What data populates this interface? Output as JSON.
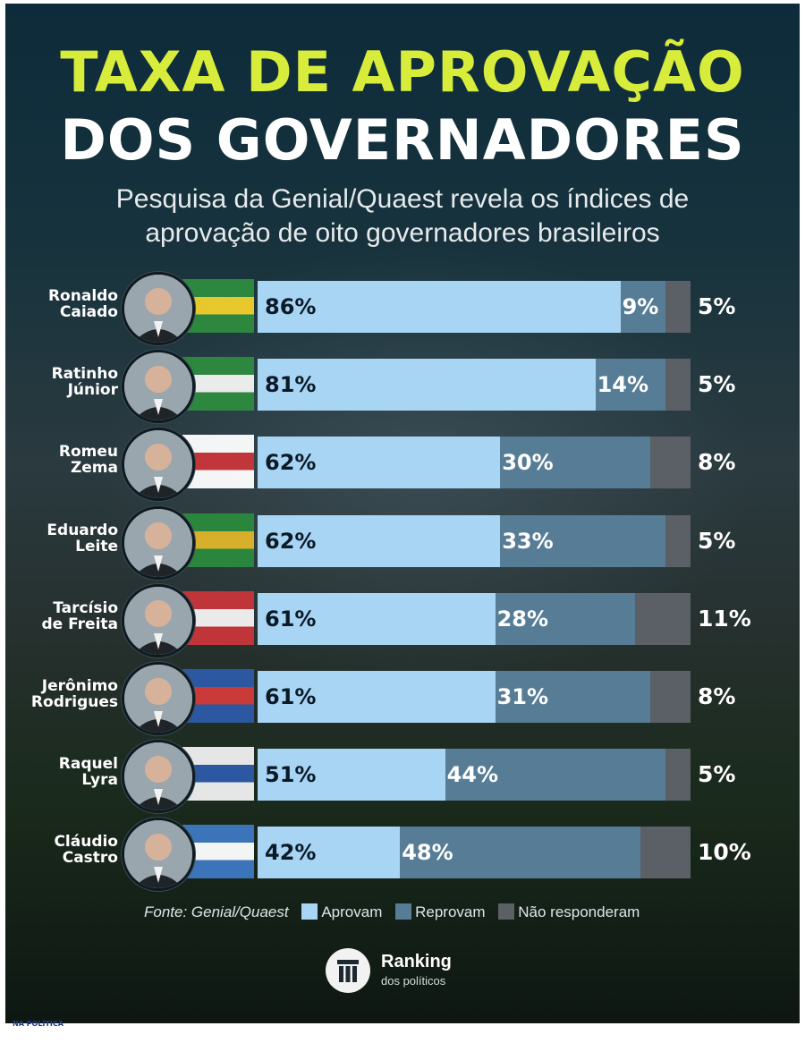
{
  "header": {
    "title_line1": "TAXA DE APROVAÇÃO",
    "title_line2": "DOS GOVERNADORES",
    "subtitle_line1": "Pesquisa da Genial/Quaest revela os índices de",
    "subtitle_line2": "aprovação de oito governadores brasileiros"
  },
  "colors": {
    "aprovam": "#a9d5f5",
    "reprovam": "#577d96",
    "nao_responderam": "#5a6066"
  },
  "chart_data": {
    "type": "bar",
    "orientation": "horizontal",
    "stacked": true,
    "title": "TAXA DE APROVAÇÃO DOS GOVERNADORES",
    "categories": [
      [
        "Ronaldo",
        "Caiado"
      ],
      [
        "Ratinho",
        "Júnior"
      ],
      [
        "Romeu",
        "Zema"
      ],
      [
        "Eduardo",
        "Leite"
      ],
      [
        "Tarcísio",
        "de Freita"
      ],
      [
        "Jerônimo",
        "Rodrigues"
      ],
      [
        "Raquel",
        "Lyra"
      ],
      [
        "Cláudio",
        "Castro"
      ]
    ],
    "series": [
      {
        "name": "Aprovam",
        "values": [
          86,
          81,
          62,
          62,
          61,
          61,
          51,
          42
        ]
      },
      {
        "name": "Reprovam",
        "values": [
          9,
          14,
          30,
          33,
          28,
          31,
          44,
          48
        ]
      },
      {
        "name": "Não responderam",
        "values": [
          5,
          5,
          8,
          5,
          11,
          8,
          5,
          10
        ]
      }
    ],
    "value_suffix": "%",
    "xlim": [
      0,
      100
    ],
    "legend": "bottom"
  },
  "footer": {
    "source": "Fonte: Genial/Quaest",
    "logo_name": "Ranking",
    "logo_sub": "dos políticos",
    "watermark": "NA POLÍTICA"
  }
}
